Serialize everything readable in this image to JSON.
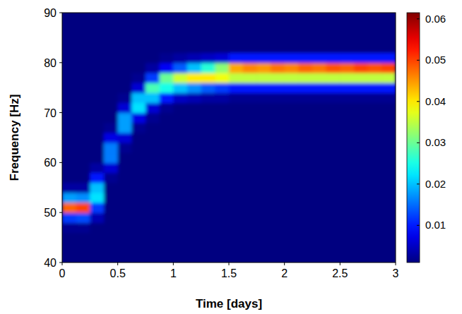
{
  "chart_data": {
    "type": "heatmap",
    "x_label": "Time [days]",
    "y_label": "Frequency [Hz]",
    "xlim": [
      0,
      3
    ],
    "xticks": [
      0,
      0.5,
      1,
      1.5,
      2,
      2.5,
      3
    ],
    "ylim": [
      40,
      90
    ],
    "yticks": [
      40,
      50,
      60,
      70,
      80,
      90
    ],
    "xbins": [
      0,
      0.125,
      0.25,
      0.375,
      0.5,
      0.625,
      0.75,
      0.875,
      1,
      1.125,
      1.25,
      1.375,
      1.5,
      1.625,
      1.75,
      1.875,
      2,
      2.125,
      2.25,
      2.375,
      2.5,
      2.625,
      2.75,
      2.875,
      3
    ],
    "ybins": [
      40,
      42,
      44,
      46,
      48,
      50,
      52,
      54,
      56,
      58,
      60,
      62,
      64,
      66,
      68,
      70,
      72,
      74,
      76,
      78,
      80,
      82,
      84,
      86,
      88,
      90
    ],
    "cells": [
      [
        0.001,
        0.001,
        0.001,
        0.002,
        0.012,
        0.048,
        0.018,
        0.003,
        0.001,
        0.001,
        0.001,
        0.001,
        0.001,
        0.001,
        0.001,
        0.001,
        0.001,
        0.001,
        0.001,
        0.001,
        0.001,
        0.001,
        0.001,
        0.001,
        0.001
      ],
      [
        0.001,
        0.001,
        0.001,
        0.002,
        0.013,
        0.05,
        0.017,
        0.003,
        0.001,
        0.001,
        0.001,
        0.001,
        0.001,
        0.001,
        0.001,
        0.001,
        0.001,
        0.001,
        0.001,
        0.001,
        0.001,
        0.001,
        0.001,
        0.001,
        0.001
      ],
      [
        0.001,
        0.001,
        0.001,
        0.001,
        0.004,
        0.012,
        0.022,
        0.02,
        0.01,
        0.003,
        0.001,
        0.001,
        0.001,
        0.001,
        0.001,
        0.001,
        0.001,
        0.001,
        0.001,
        0.001,
        0.001,
        0.001,
        0.001,
        0.001,
        0.001
      ],
      [
        0.001,
        0.001,
        0.001,
        0.001,
        0.001,
        0.001,
        0.001,
        0.001,
        0.002,
        0.006,
        0.016,
        0.016,
        0.007,
        0.002,
        0.001,
        0.001,
        0.001,
        0.001,
        0.001,
        0.001,
        0.001,
        0.001,
        0.001,
        0.001,
        0.001
      ],
      [
        0.001,
        0.001,
        0.001,
        0.001,
        0.001,
        0.001,
        0.001,
        0.001,
        0.001,
        0.001,
        0.001,
        0.002,
        0.006,
        0.018,
        0.018,
        0.006,
        0.002,
        0.001,
        0.001,
        0.001,
        0.001,
        0.001,
        0.001,
        0.001,
        0.001
      ],
      [
        0.001,
        0.001,
        0.001,
        0.001,
        0.001,
        0.001,
        0.001,
        0.001,
        0.001,
        0.001,
        0.001,
        0.001,
        0.001,
        0.002,
        0.007,
        0.022,
        0.02,
        0.006,
        0.002,
        0.001,
        0.001,
        0.001,
        0.001,
        0.001,
        0.001
      ],
      [
        0.001,
        0.001,
        0.001,
        0.001,
        0.001,
        0.001,
        0.001,
        0.001,
        0.001,
        0.001,
        0.001,
        0.001,
        0.001,
        0.001,
        0.002,
        0.006,
        0.02,
        0.028,
        0.012,
        0.003,
        0.001,
        0.001,
        0.001,
        0.001,
        0.001
      ],
      [
        0.001,
        0.001,
        0.001,
        0.001,
        0.001,
        0.001,
        0.001,
        0.001,
        0.001,
        0.001,
        0.001,
        0.001,
        0.001,
        0.001,
        0.001,
        0.002,
        0.01,
        0.025,
        0.03,
        0.008,
        0.002,
        0.001,
        0.001,
        0.001,
        0.001
      ],
      [
        0.001,
        0.001,
        0.001,
        0.001,
        0.001,
        0.001,
        0.001,
        0.001,
        0.001,
        0.001,
        0.001,
        0.001,
        0.001,
        0.001,
        0.001,
        0.001,
        0.005,
        0.02,
        0.036,
        0.014,
        0.003,
        0.001,
        0.001,
        0.001,
        0.001
      ],
      [
        0.001,
        0.001,
        0.001,
        0.001,
        0.001,
        0.001,
        0.001,
        0.001,
        0.001,
        0.001,
        0.001,
        0.001,
        0.001,
        0.001,
        0.001,
        0.001,
        0.004,
        0.017,
        0.04,
        0.02,
        0.004,
        0.001,
        0.001,
        0.001,
        0.001
      ],
      [
        0.001,
        0.001,
        0.001,
        0.001,
        0.001,
        0.001,
        0.001,
        0.001,
        0.001,
        0.001,
        0.001,
        0.001,
        0.001,
        0.001,
        0.001,
        0.001,
        0.003,
        0.014,
        0.04,
        0.026,
        0.005,
        0.001,
        0.001,
        0.001,
        0.001
      ],
      [
        0.001,
        0.001,
        0.001,
        0.001,
        0.001,
        0.001,
        0.001,
        0.001,
        0.001,
        0.001,
        0.001,
        0.001,
        0.001,
        0.001,
        0.001,
        0.001,
        0.003,
        0.012,
        0.038,
        0.032,
        0.006,
        0.001,
        0.001,
        0.001,
        0.001
      ],
      [
        0.001,
        0.001,
        0.001,
        0.001,
        0.001,
        0.001,
        0.001,
        0.001,
        0.001,
        0.001,
        0.001,
        0.001,
        0.001,
        0.001,
        0.001,
        0.001,
        0.002,
        0.01,
        0.035,
        0.044,
        0.01,
        0.001,
        0.001,
        0.001,
        0.001
      ],
      [
        0.001,
        0.001,
        0.001,
        0.001,
        0.001,
        0.001,
        0.001,
        0.001,
        0.001,
        0.001,
        0.001,
        0.001,
        0.001,
        0.001,
        0.001,
        0.001,
        0.002,
        0.01,
        0.035,
        0.046,
        0.01,
        0.001,
        0.001,
        0.001,
        0.001
      ],
      [
        0.001,
        0.001,
        0.001,
        0.001,
        0.001,
        0.001,
        0.001,
        0.001,
        0.001,
        0.001,
        0.001,
        0.001,
        0.001,
        0.001,
        0.001,
        0.001,
        0.002,
        0.01,
        0.035,
        0.045,
        0.01,
        0.001,
        0.001,
        0.001,
        0.001
      ],
      [
        0.001,
        0.001,
        0.001,
        0.001,
        0.001,
        0.001,
        0.001,
        0.001,
        0.001,
        0.001,
        0.001,
        0.001,
        0.001,
        0.001,
        0.001,
        0.001,
        0.002,
        0.01,
        0.035,
        0.047,
        0.01,
        0.001,
        0.001,
        0.001,
        0.001
      ],
      [
        0.001,
        0.001,
        0.001,
        0.001,
        0.001,
        0.001,
        0.001,
        0.001,
        0.001,
        0.001,
        0.001,
        0.001,
        0.001,
        0.001,
        0.001,
        0.001,
        0.002,
        0.01,
        0.035,
        0.046,
        0.01,
        0.001,
        0.001,
        0.001,
        0.001
      ],
      [
        0.001,
        0.001,
        0.001,
        0.001,
        0.001,
        0.001,
        0.001,
        0.001,
        0.001,
        0.001,
        0.001,
        0.001,
        0.001,
        0.001,
        0.001,
        0.001,
        0.002,
        0.01,
        0.035,
        0.048,
        0.01,
        0.001,
        0.001,
        0.001,
        0.001
      ],
      [
        0.001,
        0.001,
        0.001,
        0.001,
        0.001,
        0.001,
        0.001,
        0.001,
        0.001,
        0.001,
        0.001,
        0.001,
        0.001,
        0.001,
        0.001,
        0.001,
        0.002,
        0.01,
        0.035,
        0.047,
        0.01,
        0.001,
        0.001,
        0.001,
        0.001
      ],
      [
        0.001,
        0.001,
        0.001,
        0.001,
        0.001,
        0.001,
        0.001,
        0.001,
        0.001,
        0.001,
        0.001,
        0.001,
        0.001,
        0.001,
        0.001,
        0.001,
        0.002,
        0.01,
        0.035,
        0.049,
        0.01,
        0.001,
        0.001,
        0.001,
        0.001
      ],
      [
        0.001,
        0.001,
        0.001,
        0.001,
        0.001,
        0.001,
        0.001,
        0.001,
        0.001,
        0.001,
        0.001,
        0.001,
        0.001,
        0.001,
        0.001,
        0.001,
        0.002,
        0.01,
        0.035,
        0.048,
        0.01,
        0.001,
        0.001,
        0.001,
        0.001
      ],
      [
        0.001,
        0.001,
        0.001,
        0.001,
        0.001,
        0.001,
        0.001,
        0.001,
        0.001,
        0.001,
        0.001,
        0.001,
        0.001,
        0.001,
        0.001,
        0.001,
        0.002,
        0.01,
        0.035,
        0.05,
        0.01,
        0.001,
        0.001,
        0.001,
        0.001
      ],
      [
        0.001,
        0.001,
        0.001,
        0.001,
        0.001,
        0.001,
        0.001,
        0.001,
        0.001,
        0.001,
        0.001,
        0.001,
        0.001,
        0.001,
        0.001,
        0.001,
        0.002,
        0.01,
        0.035,
        0.049,
        0.01,
        0.001,
        0.001,
        0.001,
        0.001
      ],
      [
        0.001,
        0.001,
        0.001,
        0.001,
        0.001,
        0.001,
        0.001,
        0.001,
        0.001,
        0.001,
        0.001,
        0.001,
        0.001,
        0.001,
        0.001,
        0.001,
        0.002,
        0.01,
        0.035,
        0.05,
        0.01,
        0.001,
        0.001,
        0.001,
        0.001
      ]
    ],
    "colorbar": {
      "range": [
        0.001,
        0.0615
      ],
      "ticks": [
        0.01,
        0.02,
        0.03,
        0.04,
        0.05,
        0.06
      ]
    }
  }
}
